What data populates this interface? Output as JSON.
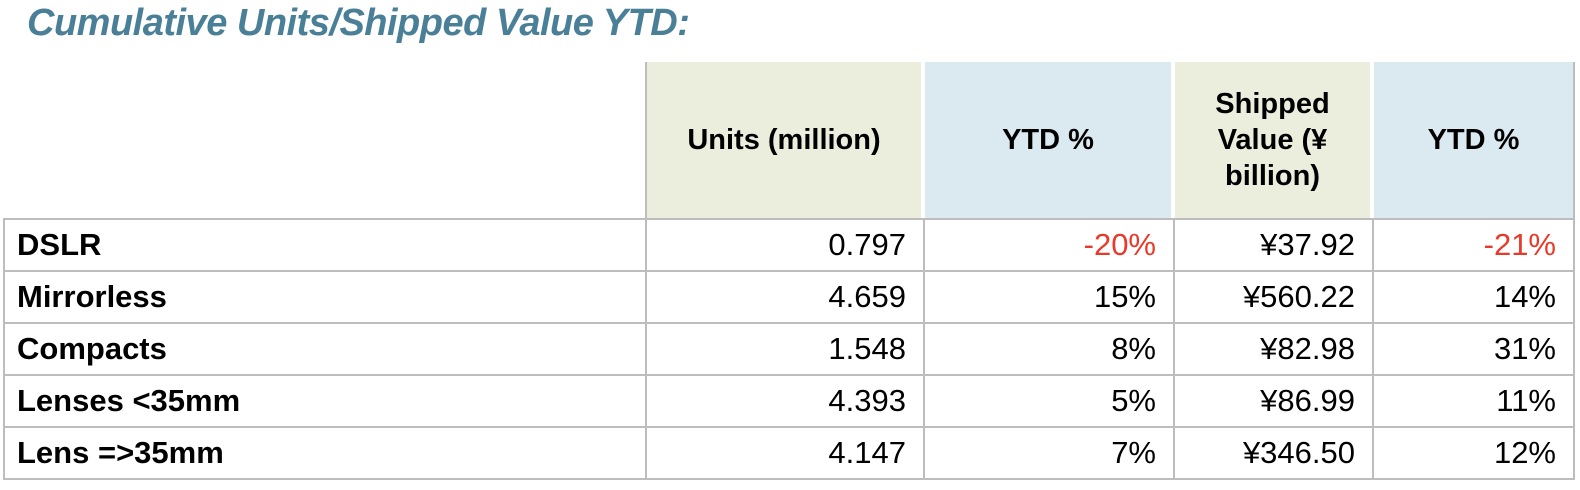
{
  "title": "Cumulative Units/Shipped Value YTD:",
  "colors": {
    "title_text": "#4a7f98",
    "header_green": "#ebeedd",
    "header_blue": "#dbe9f1",
    "grid_border": "#bdbdbd",
    "negative_value": "#e8392b",
    "body_text": "#000000"
  },
  "chart_data": {
    "type": "table",
    "title": "Cumulative Units/Shipped Value YTD:",
    "columns": [
      "",
      "Units (million)",
      "YTD %",
      "Shipped Value (¥ billion)",
      "YTD %"
    ],
    "rows": [
      {
        "label": "DSLR",
        "units": "0.797",
        "units_ytd": "-20%",
        "shipped_value": "¥37.92",
        "value_ytd": "-21%"
      },
      {
        "label": "Mirrorless",
        "units": "4.659",
        "units_ytd": "15%",
        "shipped_value": "¥560.22",
        "value_ytd": "14%"
      },
      {
        "label": "Compacts",
        "units": "1.548",
        "units_ytd": "8%",
        "shipped_value": "¥82.98",
        "value_ytd": "31%"
      },
      {
        "label": "Lenses <35mm",
        "units": "4.393",
        "units_ytd": "5%",
        "shipped_value": "¥86.99",
        "value_ytd": "11%"
      },
      {
        "label": "Lens =>35mm",
        "units": "4.147",
        "units_ytd": "7%",
        "shipped_value": "¥346.50",
        "value_ytd": "12%"
      }
    ]
  }
}
